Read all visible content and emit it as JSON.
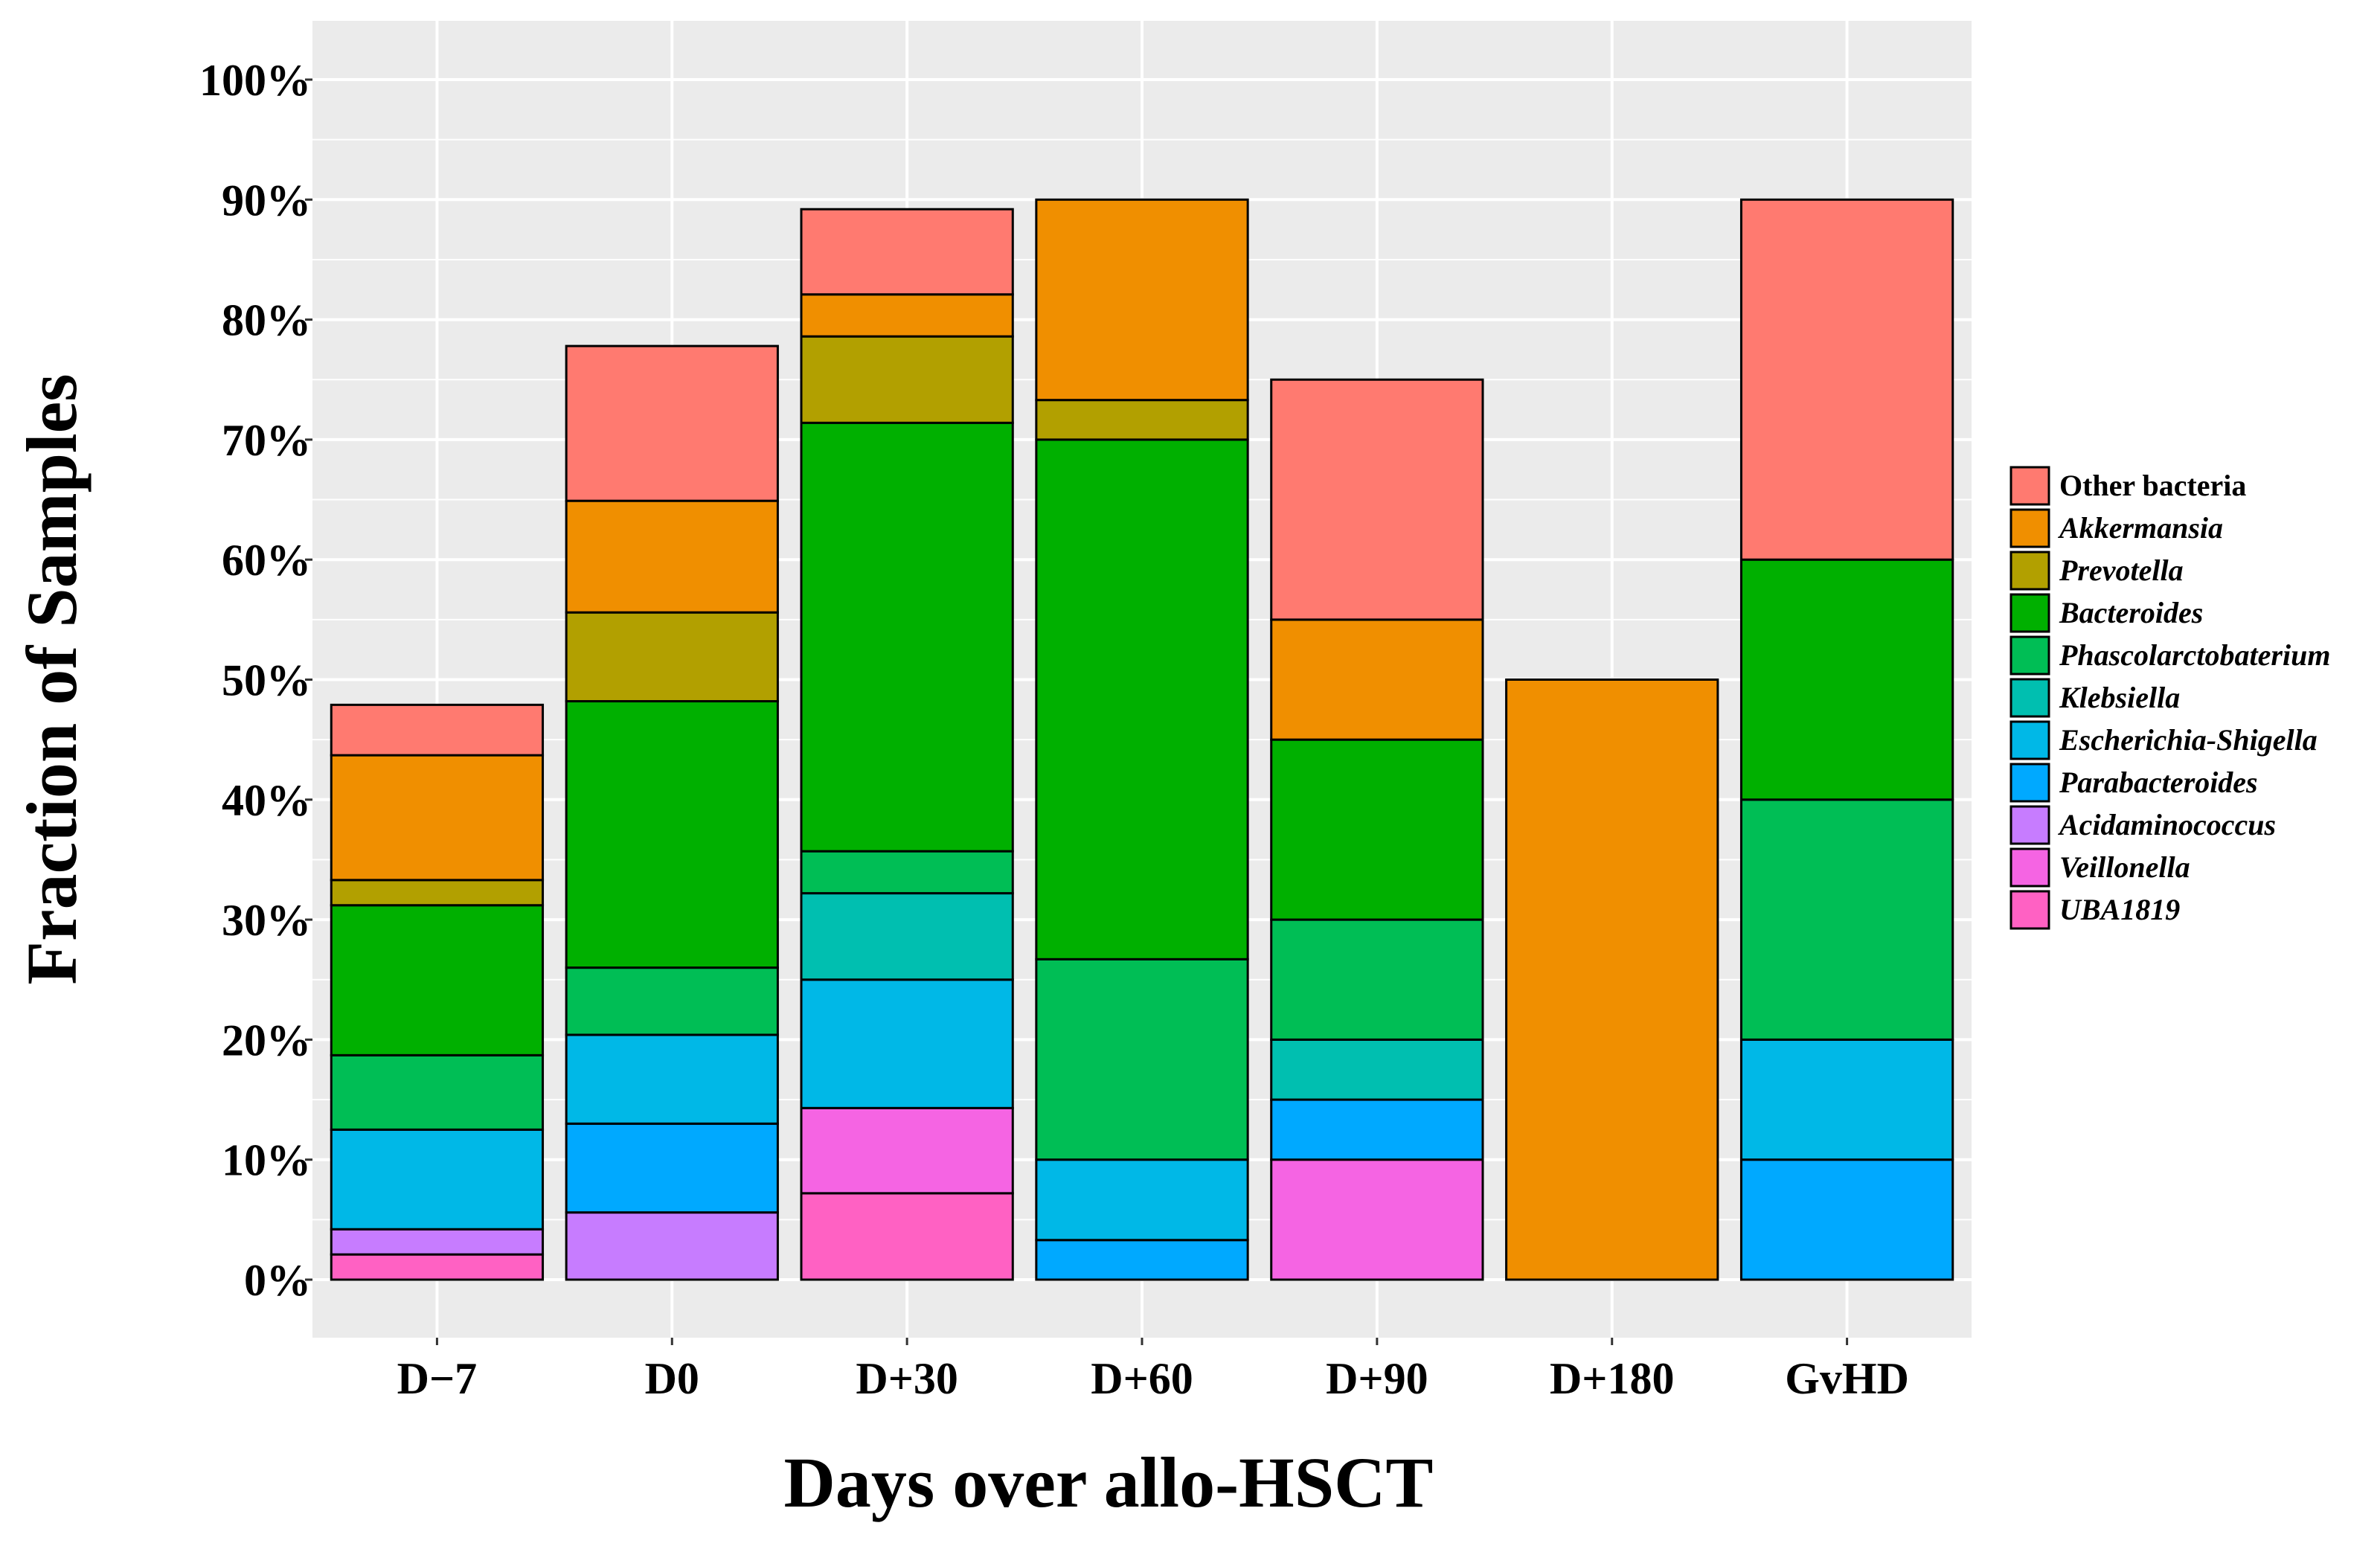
{
  "chart_data": {
    "type": "bar",
    "stacked": true,
    "title": "",
    "xlabel": "Days over allo-HSCT",
    "ylabel": "Fraction of Samples",
    "ylim": [
      -5,
      105
    ],
    "yticks": [
      0,
      10,
      20,
      30,
      40,
      50,
      60,
      70,
      80,
      90,
      100
    ],
    "ytick_labels": [
      "0%",
      "10%",
      "20%",
      "30%",
      "40%",
      "50%",
      "60%",
      "70%",
      "80%",
      "90%",
      "100%"
    ],
    "categories": [
      "D−7",
      "D0",
      "D+30",
      "D+60",
      "D+90",
      "D+180",
      "GvHD"
    ],
    "legend_position": "right",
    "series": [
      {
        "name": "UBA1819",
        "italic": true,
        "color": "#FF61C3",
        "values": [
          2.1,
          0,
          7.2,
          0,
          0,
          0,
          0
        ]
      },
      {
        "name": "Veillonella",
        "italic": true,
        "color": "#F564E3",
        "values": [
          0,
          0,
          7.1,
          0,
          10,
          0,
          0
        ]
      },
      {
        "name": "Acidaminococcus",
        "italic": true,
        "color": "#C77CFF",
        "values": [
          2.1,
          5.6,
          0,
          0,
          0,
          0,
          0
        ]
      },
      {
        "name": "Parabacteroides",
        "italic": true,
        "color": "#00A9FF",
        "values": [
          0,
          7.4,
          0,
          3.3,
          5,
          0,
          10
        ]
      },
      {
        "name": "Escherichia-Shigella",
        "italic": true,
        "color": "#00B8E7",
        "values": [
          8.3,
          7.4,
          10.7,
          6.7,
          0,
          0,
          10
        ]
      },
      {
        "name": "Klebsiella",
        "italic": true,
        "color": "#00BFB0",
        "values": [
          0,
          0,
          7.2,
          0,
          5,
          0,
          0
        ]
      },
      {
        "name": "Phascolarctobaterium",
        "italic": true,
        "color": "#00BE55",
        "values": [
          6.2,
          5.6,
          3.5,
          16.7,
          10,
          0,
          20
        ]
      },
      {
        "name": "Bacteroides",
        "italic": true,
        "color": "#00B000",
        "values": [
          12.5,
          22.2,
          35.7,
          43.3,
          15,
          0,
          20
        ]
      },
      {
        "name": "Prevotella",
        "italic": true,
        "color": "#B2A000",
        "values": [
          2.1,
          7.4,
          7.2,
          3.3,
          0,
          0,
          0
        ]
      },
      {
        "name": "Akkermansia",
        "italic": true,
        "color": "#F08F00",
        "values": [
          10.4,
          9.3,
          3.5,
          16.7,
          10,
          50,
          0
        ]
      },
      {
        "name": "Other bacteria",
        "italic": false,
        "color": "#FF7A70",
        "values": [
          4.2,
          12.9,
          7.1,
          0,
          20,
          0,
          30
        ]
      }
    ]
  }
}
